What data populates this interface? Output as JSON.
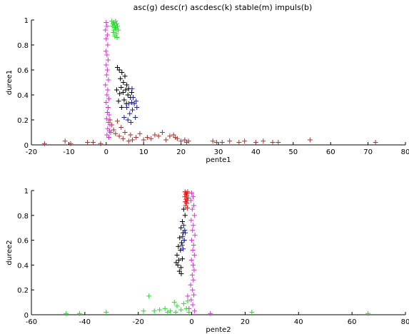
{
  "title": "asc(g) desc(r) ascdesc(k) stable(m) impuls(b)",
  "colors": {
    "g": "#22dd22",
    "r": "#ee1111",
    "k": "#000000",
    "m": "#d633d6",
    "b": "#1a1ab0",
    "brown": "#a8322e"
  },
  "chart_data": [
    {
      "type": "scatter",
      "xlabel": "pente1",
      "ylabel": "duree1",
      "xlim": [
        -20,
        80
      ],
      "ylim": [
        0,
        1
      ],
      "xticks": [
        -20,
        -10,
        0,
        10,
        20,
        30,
        40,
        50,
        60,
        70,
        80
      ],
      "yticks": [
        0,
        0.2,
        0.4,
        0.6,
        0.8,
        1
      ],
      "series": [
        {
          "key": "g",
          "points": [
            [
              1.5,
              0.99
            ],
            [
              2.0,
              0.98
            ],
            [
              2.5,
              0.99
            ],
            [
              1.8,
              0.97
            ],
            [
              2.2,
              0.96
            ],
            [
              2.8,
              0.97
            ],
            [
              1.6,
              0.95
            ],
            [
              2.4,
              0.94
            ],
            [
              3.0,
              0.95
            ],
            [
              2.1,
              0.92
            ],
            [
              2.6,
              0.93
            ],
            [
              1.9,
              0.9
            ],
            [
              2.7,
              0.89
            ],
            [
              3.2,
              0.92
            ],
            [
              2.3,
              0.87
            ],
            [
              2.9,
              0.86
            ]
          ]
        },
        {
          "key": "m",
          "points": [
            [
              0.0,
              0.98
            ],
            [
              0.2,
              0.95
            ],
            [
              -0.2,
              0.92
            ],
            [
              0.3,
              0.88
            ],
            [
              0.0,
              0.85
            ],
            [
              0.4,
              0.8
            ],
            [
              -0.1,
              0.75
            ],
            [
              0.2,
              0.72
            ],
            [
              0.5,
              0.68
            ],
            [
              0.0,
              0.64
            ],
            [
              0.3,
              0.6
            ],
            [
              0.1,
              0.56
            ],
            [
              0.6,
              0.52
            ],
            [
              -0.2,
              0.48
            ],
            [
              0.4,
              0.44
            ],
            [
              0.2,
              0.4
            ],
            [
              0.7,
              0.37
            ],
            [
              0.0,
              0.34
            ],
            [
              0.5,
              0.3
            ],
            [
              0.3,
              0.26
            ],
            [
              0.8,
              0.24
            ],
            [
              0.1,
              0.21
            ],
            [
              0.6,
              0.18
            ],
            [
              1.0,
              0.16
            ],
            [
              0.4,
              0.13
            ],
            [
              0.9,
              0.11
            ],
            [
              0.2,
              0.08
            ],
            [
              1.2,
              0.1
            ],
            [
              0.7,
              0.06
            ]
          ]
        },
        {
          "key": "k",
          "points": [
            [
              3.0,
              0.62
            ],
            [
              3.5,
              0.6
            ],
            [
              4.2,
              0.58
            ],
            [
              5.0,
              0.55
            ],
            [
              3.8,
              0.53
            ],
            [
              4.6,
              0.5
            ],
            [
              5.5,
              0.48
            ],
            [
              4.0,
              0.46
            ],
            [
              5.2,
              0.44
            ],
            [
              6.0,
              0.45
            ],
            [
              4.5,
              0.42
            ],
            [
              5.8,
              0.4
            ],
            [
              3.6,
              0.41
            ],
            [
              6.5,
              0.38
            ],
            [
              4.8,
              0.36
            ],
            [
              5.4,
              0.33
            ],
            [
              3.3,
              0.35
            ],
            [
              4.1,
              0.3
            ],
            [
              2.8,
              0.44
            ],
            [
              6.8,
              0.42
            ]
          ]
        },
        {
          "key": "b",
          "points": [
            [
              6.0,
              0.33
            ],
            [
              6.8,
              0.34
            ],
            [
              7.5,
              0.33
            ],
            [
              5.5,
              0.3
            ],
            [
              8.0,
              0.35
            ],
            [
              7.0,
              0.28
            ],
            [
              6.3,
              0.25
            ],
            [
              7.8,
              0.22
            ],
            [
              5.8,
              0.2
            ],
            [
              6.6,
              0.18
            ],
            [
              4.8,
              0.22
            ],
            [
              8.2,
              0.3
            ],
            [
              7.2,
              0.38
            ],
            [
              6.9,
              0.45
            ]
          ]
        },
        {
          "key": "brown",
          "points": [
            [
              -16.5,
              0.01
            ],
            [
              -11.0,
              0.03
            ],
            [
              -9.5,
              0.01
            ],
            [
              -5.0,
              0.02
            ],
            [
              -3.5,
              0.02
            ],
            [
              -1.5,
              0.01
            ],
            [
              1.0,
              0.2
            ],
            [
              1.5,
              0.16
            ],
            [
              2.0,
              0.12
            ],
            [
              2.5,
              0.09
            ],
            [
              3.0,
              0.19
            ],
            [
              3.5,
              0.07
            ],
            [
              4.0,
              0.14
            ],
            [
              4.5,
              0.05
            ],
            [
              5.0,
              0.1
            ],
            [
              6.0,
              0.03
            ],
            [
              6.5,
              0.08
            ],
            [
              7.0,
              0.04
            ],
            [
              8.0,
              0.06
            ],
            [
              9.0,
              0.09
            ],
            [
              10.0,
              0.04
            ],
            [
              11.0,
              0.06
            ],
            [
              12.0,
              0.05
            ],
            [
              13.0,
              0.08
            ],
            [
              14.0,
              0.07
            ],
            [
              15.0,
              0.1
            ],
            [
              16.0,
              0.04
            ],
            [
              17.0,
              0.07
            ],
            [
              18.0,
              0.08
            ],
            [
              18.5,
              0.06
            ],
            [
              19.0,
              0.05
            ],
            [
              20.0,
              0.03
            ],
            [
              21.0,
              0.04
            ],
            [
              21.5,
              0.02
            ],
            [
              22.0,
              0.03
            ],
            [
              28.5,
              0.03
            ],
            [
              29.5,
              0.02
            ],
            [
              31.0,
              0.02
            ],
            [
              33.0,
              0.03
            ],
            [
              35.5,
              0.02
            ],
            [
              37.0,
              0.03
            ],
            [
              40.0,
              0.02
            ],
            [
              42.0,
              0.03
            ],
            [
              44.5,
              0.02
            ],
            [
              46.0,
              0.02
            ],
            [
              54.5,
              0.04
            ],
            [
              72.0,
              0.02
            ]
          ]
        }
      ]
    },
    {
      "type": "scatter",
      "xlabel": "pente2",
      "ylabel": "duree2",
      "xlim": [
        -60,
        80
      ],
      "ylim": [
        0,
        1
      ],
      "xticks": [
        -60,
        -40,
        -20,
        0,
        20,
        40,
        60,
        80
      ],
      "yticks": [
        0,
        0.2,
        0.4,
        0.6,
        0.8,
        1
      ],
      "series": [
        {
          "key": "r",
          "points": [
            [
              -2.5,
              0.99
            ],
            [
              -2.0,
              0.98
            ],
            [
              -1.5,
              0.99
            ],
            [
              -2.2,
              0.97
            ],
            [
              -1.8,
              0.96
            ],
            [
              -2.6,
              0.95
            ],
            [
              -1.4,
              0.94
            ],
            [
              -2.1,
              0.93
            ],
            [
              -1.7,
              0.92
            ],
            [
              -2.4,
              0.91
            ],
            [
              -1.9,
              0.9
            ],
            [
              -2.3,
              0.88
            ],
            [
              -1.6,
              0.86
            ]
          ]
        },
        {
          "key": "m",
          "points": [
            [
              0.0,
              0.98
            ],
            [
              0.5,
              0.95
            ],
            [
              -0.3,
              0.92
            ],
            [
              0.8,
              0.88
            ],
            [
              0.2,
              0.85
            ],
            [
              1.0,
              0.8
            ],
            [
              -0.2,
              0.76
            ],
            [
              0.6,
              0.72
            ],
            [
              0.3,
              0.68
            ],
            [
              1.2,
              0.64
            ],
            [
              0.0,
              0.6
            ],
            [
              0.7,
              0.56
            ],
            [
              0.4,
              0.52
            ],
            [
              1.0,
              0.48
            ],
            [
              -0.1,
              0.44
            ],
            [
              0.5,
              0.4
            ],
            [
              0.9,
              0.36
            ],
            [
              0.2,
              0.32
            ],
            [
              0.6,
              0.28
            ],
            [
              -0.4,
              0.24
            ],
            [
              0.3,
              0.2
            ],
            [
              0.8,
              0.16
            ],
            [
              -0.2,
              0.12
            ],
            [
              0.4,
              0.08
            ],
            [
              -1.0,
              0.05
            ],
            [
              1.1,
              0.03
            ],
            [
              7.0,
              0.01
            ],
            [
              -1.5,
              0.15
            ]
          ]
        },
        {
          "key": "k",
          "points": [
            [
              -3.0,
              0.85
            ],
            [
              -2.5,
              0.8
            ],
            [
              -3.5,
              0.75
            ],
            [
              -4.0,
              0.7
            ],
            [
              -3.2,
              0.66
            ],
            [
              -4.5,
              0.62
            ],
            [
              -3.8,
              0.58
            ],
            [
              -5.0,
              0.55
            ],
            [
              -4.2,
              0.52
            ],
            [
              -5.5,
              0.48
            ],
            [
              -4.8,
              0.44
            ],
            [
              -5.2,
              0.4
            ],
            [
              -4.0,
              0.38
            ],
            [
              -3.5,
              0.45
            ],
            [
              -2.8,
              0.6
            ],
            [
              -4.6,
              0.35
            ],
            [
              -3.9,
              0.33
            ],
            [
              -5.8,
              0.42
            ]
          ]
        },
        {
          "key": "b",
          "points": [
            [
              -3.0,
              0.72
            ],
            [
              -2.6,
              0.68
            ],
            [
              -3.4,
              0.63
            ],
            [
              -2.8,
              0.6
            ],
            [
              -3.6,
              0.56
            ],
            [
              -3.2,
              0.53
            ],
            [
              -2.4,
              0.66
            ]
          ]
        },
        {
          "key": "g",
          "points": [
            [
              -47.0,
              0.01
            ],
            [
              -42.0,
              0.01
            ],
            [
              -32.0,
              0.02
            ],
            [
              -18.0,
              0.03
            ],
            [
              -16.0,
              0.15
            ],
            [
              -14.0,
              0.03
            ],
            [
              -12.0,
              0.04
            ],
            [
              -10.0,
              0.05
            ],
            [
              -8.0,
              0.03
            ],
            [
              -6.5,
              0.1
            ],
            [
              -5.5,
              0.07
            ],
            [
              -4.0,
              0.04
            ],
            [
              -3.0,
              0.09
            ],
            [
              -2.0,
              0.05
            ],
            [
              -1.0,
              0.02
            ],
            [
              -6.0,
              0.02
            ],
            [
              -9.0,
              0.02
            ],
            [
              -1.5,
              0.11
            ],
            [
              22.5,
              0.02
            ],
            [
              66.0,
              0.01
            ]
          ]
        }
      ]
    }
  ]
}
